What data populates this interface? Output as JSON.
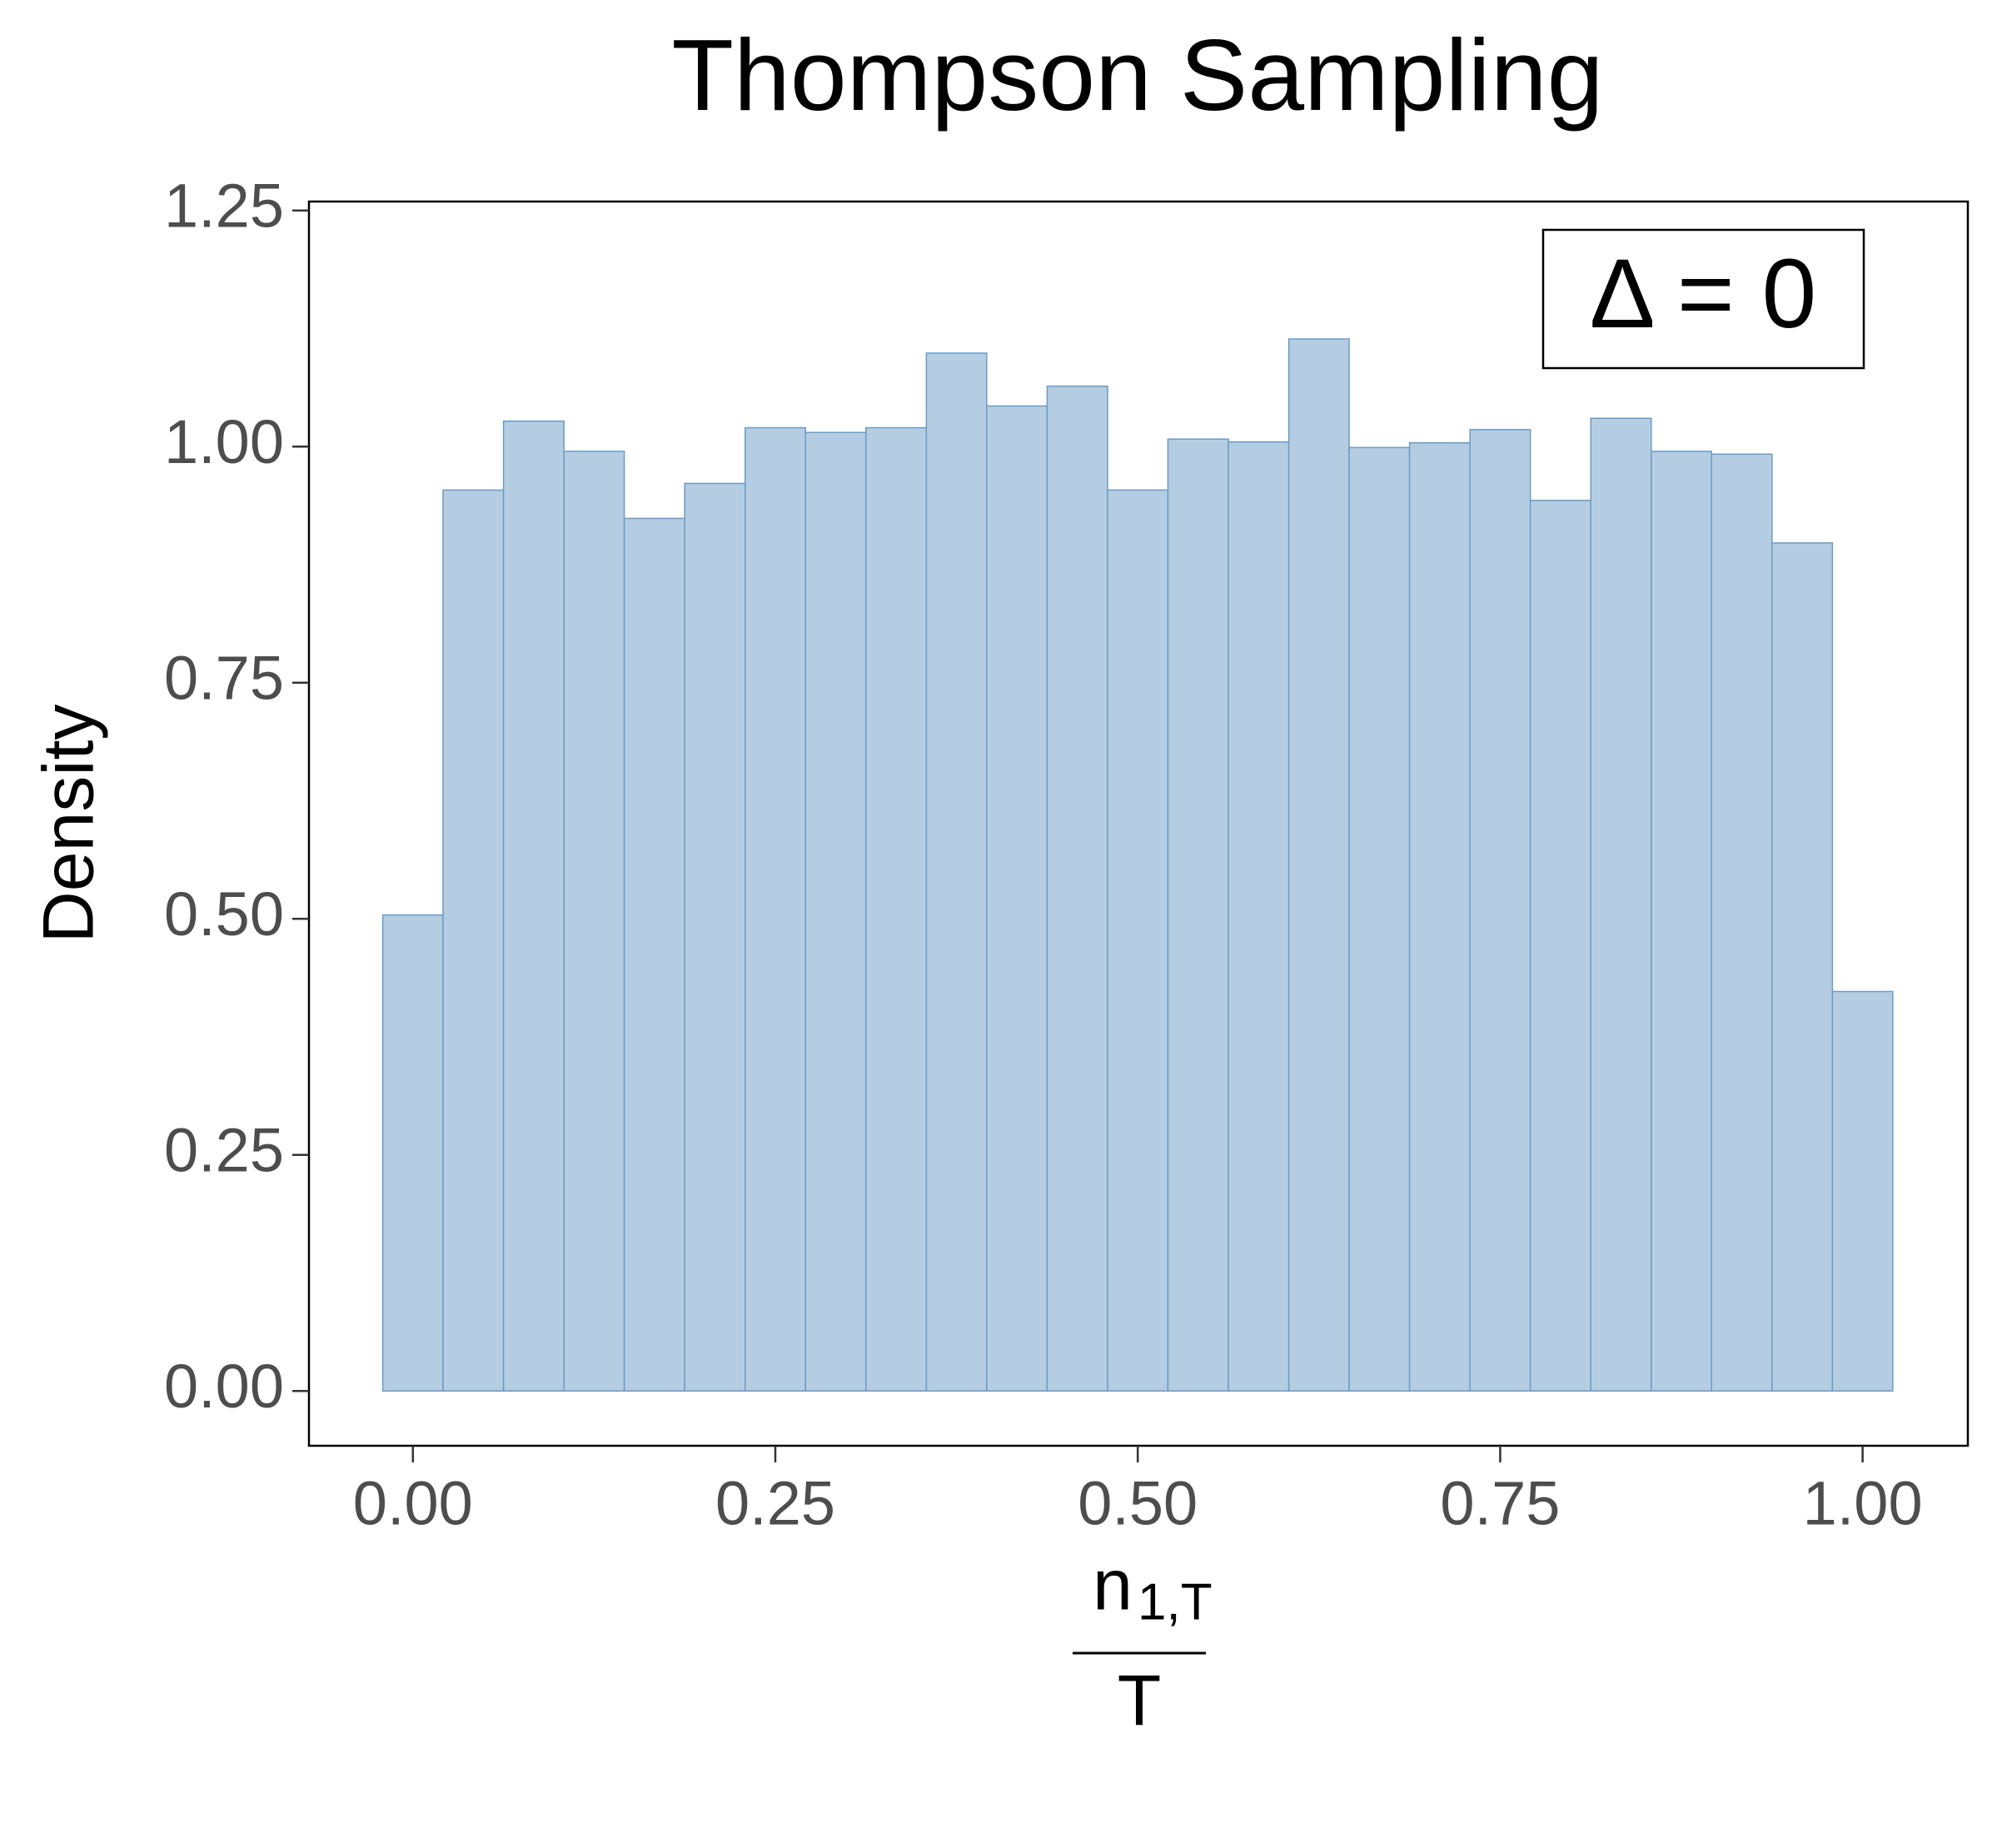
{
  "chart_data": {
    "type": "histogram",
    "title": "Thompson Sampling",
    "ylabel": "Density",
    "xlabel": {
      "numerator": "n",
      "numerator_subscript": "1,T",
      "denominator": "T"
    },
    "annotation": "Δ = 0",
    "bins": [
      -0.0208,
      0.0208,
      0.0625,
      0.1042,
      0.1458,
      0.1875,
      0.2292,
      0.2708,
      0.3125,
      0.3542,
      0.3958,
      0.4375,
      0.4792,
      0.5208,
      0.5625,
      0.6042,
      0.6458,
      0.6875,
      0.7292,
      0.7708,
      0.8125,
      0.8542,
      0.8958,
      0.9375,
      0.9792,
      1.0208
    ],
    "counts": [
      0.504,
      0.954,
      1.027,
      0.995,
      0.924,
      0.961,
      1.02,
      1.015,
      1.02,
      1.099,
      1.043,
      1.064,
      0.954,
      1.008,
      1.005,
      1.114,
      0.999,
      1.004,
      1.018,
      0.943,
      1.03,
      0.995,
      0.992,
      0.898,
      0.423
    ],
    "color": "#b5cde2",
    "edgecolor": "#6a9bc6",
    "xlim": [
      -0.0717,
      1.0726
    ],
    "ylim": [
      -0.058,
      1.2595
    ],
    "xticks": [
      {
        "value": 0,
        "label": "0.00"
      },
      {
        "value": 0.25,
        "label": "0.25"
      },
      {
        "value": 0.5,
        "label": "0.50"
      },
      {
        "value": 0.75,
        "label": "0.75"
      },
      {
        "value": 1,
        "label": "1.00"
      }
    ],
    "yticks": [
      {
        "value": 0,
        "label": "0.00"
      },
      {
        "value": 0.25,
        "label": "0.25"
      },
      {
        "value": 0.5,
        "label": "0.50"
      },
      {
        "value": 0.75,
        "label": "0.75"
      },
      {
        "value": 1,
        "label": "1.00"
      },
      {
        "value": 1.25,
        "label": "1.25"
      }
    ],
    "grid": false
  }
}
